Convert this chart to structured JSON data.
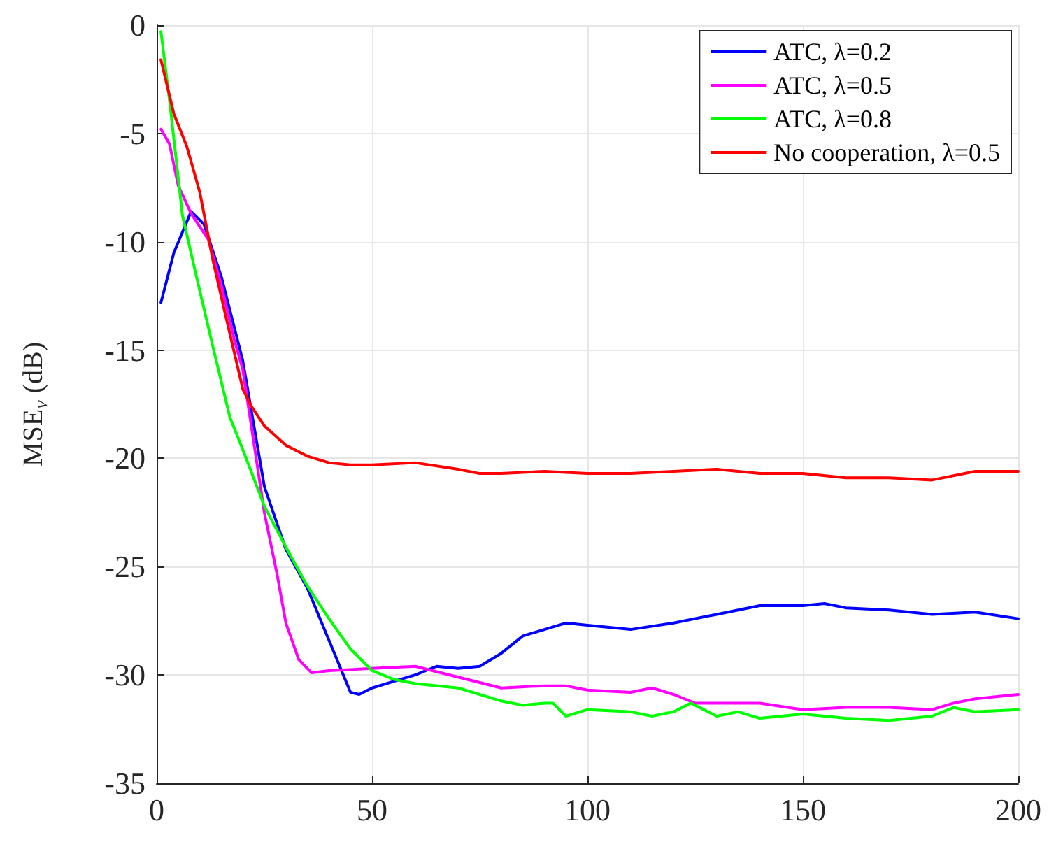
{
  "chart_data": {
    "type": "line",
    "ylabel": "MSE$_{v}$ (dB)",
    "xlim": [
      0,
      200
    ],
    "xticks": [
      0,
      50,
      100,
      150,
      200
    ],
    "ylim": [
      -35,
      0
    ],
    "yticks": [
      -35,
      -30,
      -25,
      -20,
      -15,
      -10,
      -5,
      0
    ],
    "grid": true,
    "legend": "top right",
    "marker": "none",
    "line_style": "solid",
    "series": [
      {
        "name": "ATC, λ=0.2",
        "color": "#0000ff",
        "x": [
          1,
          4,
          8,
          11,
          15,
          20,
          25,
          30,
          35,
          40,
          45,
          47,
          50,
          55,
          60,
          65,
          70,
          75,
          80,
          85,
          90,
          95,
          100,
          110,
          120,
          130,
          140,
          150,
          155,
          160,
          170,
          180,
          190,
          200
        ],
        "values": [
          -12.8,
          -10.5,
          -8.6,
          -9.2,
          -11.6,
          -15.5,
          -21.3,
          -24.2,
          -26,
          -28.4,
          -30.8,
          -30.9,
          -30.6,
          -30.3,
          -30,
          -29.6,
          -29.7,
          -29.6,
          -29,
          -28.2,
          -27.9,
          -27.6,
          -27.7,
          -27.9,
          -27.6,
          -27.2,
          -26.8,
          -26.8,
          -26.7,
          -26.9,
          -27,
          -27.2,
          -27.1,
          -27.4
        ]
      },
      {
        "name": "ATC, λ=0.5",
        "color": "#ff00ff",
        "x": [
          1,
          3,
          5,
          8,
          12,
          15,
          18,
          20,
          25,
          28,
          30,
          33,
          36,
          40,
          50,
          60,
          70,
          80,
          90,
          95,
          100,
          110,
          115,
          120,
          125,
          130,
          140,
          150,
          160,
          170,
          180,
          185,
          190,
          200
        ],
        "values": [
          -4.8,
          -5.5,
          -7.4,
          -8.7,
          -9.9,
          -12,
          -14.5,
          -15.9,
          -22.5,
          -25.4,
          -27.6,
          -29.3,
          -29.9,
          -29.8,
          -29.7,
          -29.6,
          -30.1,
          -30.6,
          -30.5,
          -30.5,
          -30.7,
          -30.8,
          -30.6,
          -30.9,
          -31.3,
          -31.3,
          -31.3,
          -31.6,
          -31.5,
          -31.5,
          -31.6,
          -31.3,
          -31.1,
          -30.9
        ]
      },
      {
        "name": "ATC, λ=0.8",
        "color": "#00ff00",
        "x": [
          1,
          3,
          6,
          9,
          13,
          17,
          20,
          25,
          30,
          35,
          40,
          45,
          50,
          55,
          60,
          70,
          80,
          85,
          90,
          92,
          95,
          100,
          110,
          115,
          120,
          124,
          130,
          135,
          140,
          150,
          160,
          170,
          180,
          185,
          190,
          200
        ],
        "values": [
          -0.3,
          -3.5,
          -8.8,
          -11.4,
          -14.8,
          -18.1,
          -19.6,
          -22.2,
          -24.1,
          -25.9,
          -27.4,
          -28.8,
          -29.8,
          -30.2,
          -30.4,
          -30.6,
          -31.2,
          -31.4,
          -31.3,
          -31.3,
          -31.9,
          -31.6,
          -31.7,
          -31.9,
          -31.7,
          -31.3,
          -31.9,
          -31.7,
          -32,
          -31.8,
          -32,
          -32.1,
          -31.9,
          -31.5,
          -31.7,
          -31.6
        ]
      },
      {
        "name": "No cooperation, λ=0.5",
        "color": "#ff0000",
        "x": [
          1,
          4,
          7,
          10,
          13,
          16,
          20,
          22,
          25,
          30,
          35,
          40,
          45,
          50,
          60,
          70,
          75,
          80,
          90,
          100,
          110,
          120,
          130,
          140,
          150,
          160,
          170,
          180,
          190,
          200
        ],
        "values": [
          -1.6,
          -4.1,
          -5.6,
          -7.7,
          -10.8,
          -13.4,
          -16.8,
          -17.6,
          -18.5,
          -19.4,
          -19.9,
          -20.2,
          -20.3,
          -20.3,
          -20.2,
          -20.5,
          -20.7,
          -20.7,
          -20.6,
          -20.7,
          -20.7,
          -20.6,
          -20.5,
          -20.7,
          -20.7,
          -20.9,
          -20.9,
          -21,
          -20.6,
          -20.6
        ]
      }
    ]
  }
}
